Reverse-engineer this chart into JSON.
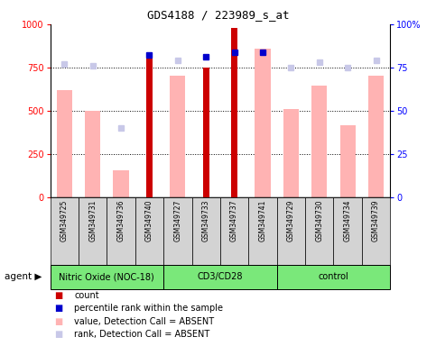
{
  "title": "GDS4188 / 223989_s_at",
  "samples": [
    "GSM349725",
    "GSM349731",
    "GSM349736",
    "GSM349740",
    "GSM349727",
    "GSM349733",
    "GSM349737",
    "GSM349741",
    "GSM349729",
    "GSM349730",
    "GSM349734",
    "GSM349739"
  ],
  "group_boundaries": [
    {
      "start": 0,
      "end": 3,
      "name": "Nitric Oxide (NOC-18)"
    },
    {
      "start": 4,
      "end": 7,
      "name": "CD3/CD28"
    },
    {
      "start": 8,
      "end": 11,
      "name": "control"
    }
  ],
  "count_values": [
    null,
    null,
    null,
    800,
    null,
    750,
    980,
    null,
    null,
    null,
    null,
    null
  ],
  "percentile_rank": [
    null,
    null,
    null,
    82,
    null,
    81,
    84,
    84,
    null,
    null,
    null,
    null
  ],
  "value_absent": [
    620,
    500,
    155,
    null,
    700,
    null,
    null,
    860,
    510,
    645,
    415,
    700
  ],
  "rank_absent": [
    77,
    76,
    40,
    null,
    79,
    null,
    null,
    null,
    75,
    78,
    75,
    79
  ],
  "ylim_left": [
    0,
    1000
  ],
  "ylim_right": [
    0,
    100
  ],
  "yticks_left": [
    0,
    250,
    500,
    750,
    1000
  ],
  "yticks_right": [
    0,
    25,
    50,
    75,
    100
  ],
  "color_count": "#cc0000",
  "color_rank": "#0000cc",
  "color_value_absent": "#ffb3b3",
  "color_rank_absent": "#c8c8e8",
  "bg_groups": "#7ae87a",
  "bg_labels": "#d3d3d3"
}
